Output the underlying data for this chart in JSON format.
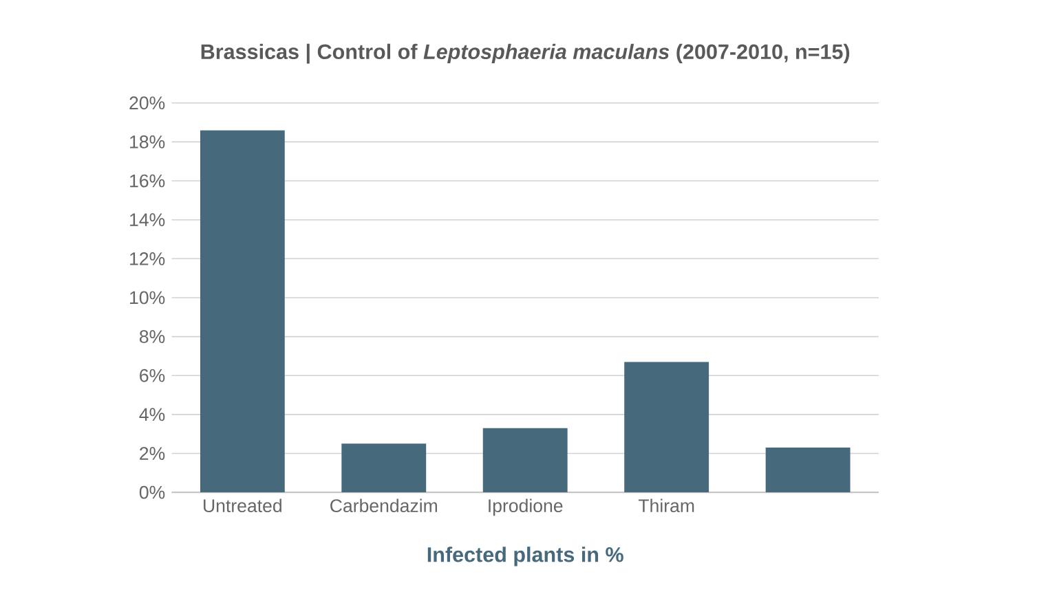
{
  "chart_data": {
    "type": "bar",
    "title": "Brassicas | Control of *Leptosphaeria maculans* (2007-2010, n=15)",
    "categories": [
      "Untreated",
      "Carbendazim",
      "Iprodione",
      "Thiram",
      null
    ],
    "values": [
      18.6,
      2.5,
      3.3,
      6.7,
      2.3
    ],
    "color": "#46697c",
    "xlabel": "Infected plants in %",
    "ylim": [
      0,
      20
    ],
    "yticks": [
      {
        "value": 0,
        "label": "0%"
      },
      {
        "value": 2,
        "label": "2%"
      },
      {
        "value": 4,
        "label": "4%"
      },
      {
        "value": 6,
        "label": "6%"
      },
      {
        "value": 8,
        "label": "8%"
      },
      {
        "value": 10,
        "label": "10%"
      },
      {
        "value": 12,
        "label": "12%"
      },
      {
        "value": 14,
        "label": "14%"
      },
      {
        "value": 16,
        "label": "16%"
      },
      {
        "value": 18,
        "label": "18%"
      },
      {
        "value": 20,
        "label": "20%"
      }
    ],
    "grid": "y"
  }
}
